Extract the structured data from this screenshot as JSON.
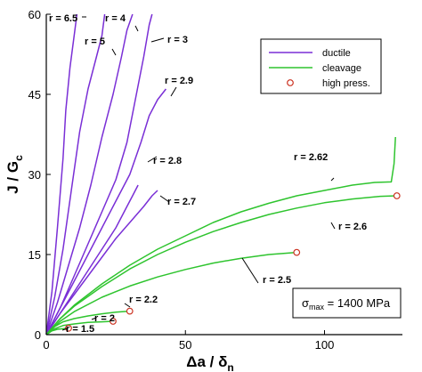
{
  "chart_data": {
    "type": "line",
    "x_label": "Δa / δn",
    "y_label": "J / Gc",
    "xlim": [
      0,
      128
    ],
    "ylim": [
      0,
      60
    ],
    "x_ticks": [
      "0",
      "50",
      "100"
    ],
    "y_ticks": [
      "0",
      "15",
      "30",
      "45",
      "60"
    ],
    "grid": false,
    "legend_placement": "top-right",
    "legend": [
      {
        "label": "ductile",
        "kind": "ductile"
      },
      {
        "label": "cleavage",
        "kind": "cleavage"
      },
      {
        "label": "high press.",
        "kind": "high"
      }
    ],
    "annotation": {
      "sigma_symbol": "σ",
      "sigma_sub": "max",
      "value_text": " = 1400 MPa"
    },
    "colors": {
      "ductile": "#7a2fd6",
      "cleavage": "#2ec42e",
      "marker": "#cc3322",
      "axis": "#000000"
    },
    "series": [
      {
        "name": "r = 6.5",
        "kind": "ductile",
        "points": [
          [
            0,
            0
          ],
          [
            2,
            8
          ],
          [
            4,
            20
          ],
          [
            6,
            33
          ],
          [
            7,
            42
          ],
          [
            8.5,
            50
          ],
          [
            10,
            56
          ],
          [
            11,
            60
          ]
        ]
      },
      {
        "name": "r = 5",
        "kind": "ductile",
        "points": [
          [
            0,
            0
          ],
          [
            3,
            7
          ],
          [
            6,
            16
          ],
          [
            9,
            27
          ],
          [
            12,
            38
          ],
          [
            15,
            46
          ],
          [
            18,
            52
          ],
          [
            20,
            56
          ],
          [
            21,
            60
          ]
        ]
      },
      {
        "name": "r = 4",
        "kind": "ductile",
        "points": [
          [
            0,
            0
          ],
          [
            4,
            6
          ],
          [
            8,
            13
          ],
          [
            12,
            20
          ],
          [
            16,
            28
          ],
          [
            20,
            37
          ],
          [
            24,
            45
          ],
          [
            27,
            52
          ],
          [
            29,
            57
          ],
          [
            31,
            60
          ]
        ]
      },
      {
        "name": "r = 3",
        "kind": "ductile",
        "points": [
          [
            0,
            0
          ],
          [
            5,
            5
          ],
          [
            10,
            11
          ],
          [
            15,
            17
          ],
          [
            20,
            23
          ],
          [
            25,
            29
          ],
          [
            29,
            36
          ],
          [
            32,
            44
          ],
          [
            35,
            52
          ],
          [
            37,
            58
          ],
          [
            38,
            60
          ]
        ]
      },
      {
        "name": "r = 2.9",
        "kind": "ductile",
        "points": [
          [
            0,
            0
          ],
          [
            5,
            5
          ],
          [
            10,
            10
          ],
          [
            15,
            15
          ],
          [
            20,
            20
          ],
          [
            25,
            25
          ],
          [
            30,
            30
          ],
          [
            34,
            36
          ],
          [
            37,
            41
          ],
          [
            40,
            44
          ],
          [
            43,
            46
          ]
        ]
      },
      {
        "name": "r = 2.8",
        "kind": "ductile",
        "points": [
          [
            0,
            0
          ],
          [
            5,
            4
          ],
          [
            10,
            8
          ],
          [
            15,
            12
          ],
          [
            20,
            16
          ],
          [
            25,
            20
          ],
          [
            29,
            24
          ],
          [
            31,
            26
          ],
          [
            33,
            28
          ]
        ]
      },
      {
        "name": "r = 2.7",
        "kind": "ductile",
        "points": [
          [
            0,
            0
          ],
          [
            5,
            4
          ],
          [
            10,
            7.5
          ],
          [
            15,
            11
          ],
          [
            20,
            14.5
          ],
          [
            25,
            18
          ],
          [
            30,
            21
          ],
          [
            35,
            24
          ],
          [
            38,
            26
          ],
          [
            40,
            27
          ]
        ]
      },
      {
        "name": "r = 2.62",
        "kind": "cleavage",
        "points": [
          [
            0,
            0
          ],
          [
            5,
            3
          ],
          [
            10,
            5.5
          ],
          [
            20,
            9.5
          ],
          [
            30,
            13
          ],
          [
            40,
            16
          ],
          [
            50,
            18.5
          ],
          [
            60,
            21
          ],
          [
            70,
            23
          ],
          [
            80,
            24.6
          ],
          [
            90,
            26
          ],
          [
            100,
            27
          ],
          [
            110,
            28
          ],
          [
            118,
            28.5
          ],
          [
            124,
            28.6
          ],
          [
            125,
            32
          ],
          [
            125.5,
            37
          ]
        ]
      },
      {
        "name": "r = 2.6",
        "kind": "cleavage",
        "points": [
          [
            0,
            0
          ],
          [
            5,
            3
          ],
          [
            10,
            5.3
          ],
          [
            20,
            9
          ],
          [
            30,
            12.3
          ],
          [
            40,
            15
          ],
          [
            50,
            17.3
          ],
          [
            60,
            19.3
          ],
          [
            70,
            21
          ],
          [
            80,
            22.5
          ],
          [
            90,
            23.7
          ],
          [
            100,
            24.7
          ],
          [
            110,
            25.4
          ],
          [
            120,
            25.9
          ],
          [
            126,
            26
          ]
        ]
      },
      {
        "name": "r = 2.5",
        "kind": "cleavage",
        "points": [
          [
            0,
            0
          ],
          [
            5,
            2.5
          ],
          [
            10,
            4.3
          ],
          [
            20,
            7
          ],
          [
            30,
            9.1
          ],
          [
            40,
            10.8
          ],
          [
            50,
            12.2
          ],
          [
            60,
            13.4
          ],
          [
            70,
            14.3
          ],
          [
            80,
            15
          ],
          [
            90,
            15.4
          ]
        ]
      },
      {
        "name": "r = 2.2",
        "kind": "cleavage",
        "points": [
          [
            0,
            0
          ],
          [
            3,
            1.5
          ],
          [
            6,
            2.4
          ],
          [
            10,
            3
          ],
          [
            15,
            3.5
          ],
          [
            20,
            3.9
          ],
          [
            25,
            4.2
          ],
          [
            30,
            4.4
          ]
        ]
      },
      {
        "name": "r = 2",
        "kind": "cleavage",
        "points": [
          [
            0,
            0
          ],
          [
            3,
            1.1
          ],
          [
            6,
            1.7
          ],
          [
            10,
            2
          ],
          [
            15,
            2.3
          ],
          [
            20,
            2.4
          ],
          [
            24,
            2.5
          ]
        ]
      },
      {
        "name": "r = 1.5",
        "kind": "cleavage",
        "points": [
          [
            0,
            0
          ],
          [
            2,
            0.7
          ],
          [
            4,
            1
          ],
          [
            6,
            1.1
          ],
          [
            8,
            1.2
          ]
        ]
      }
    ],
    "high_pressure_points": [
      [
        8,
        1.2
      ],
      [
        24,
        2.5
      ],
      [
        30,
        4.4
      ],
      [
        90,
        15.4
      ],
      [
        126,
        26
      ]
    ]
  }
}
